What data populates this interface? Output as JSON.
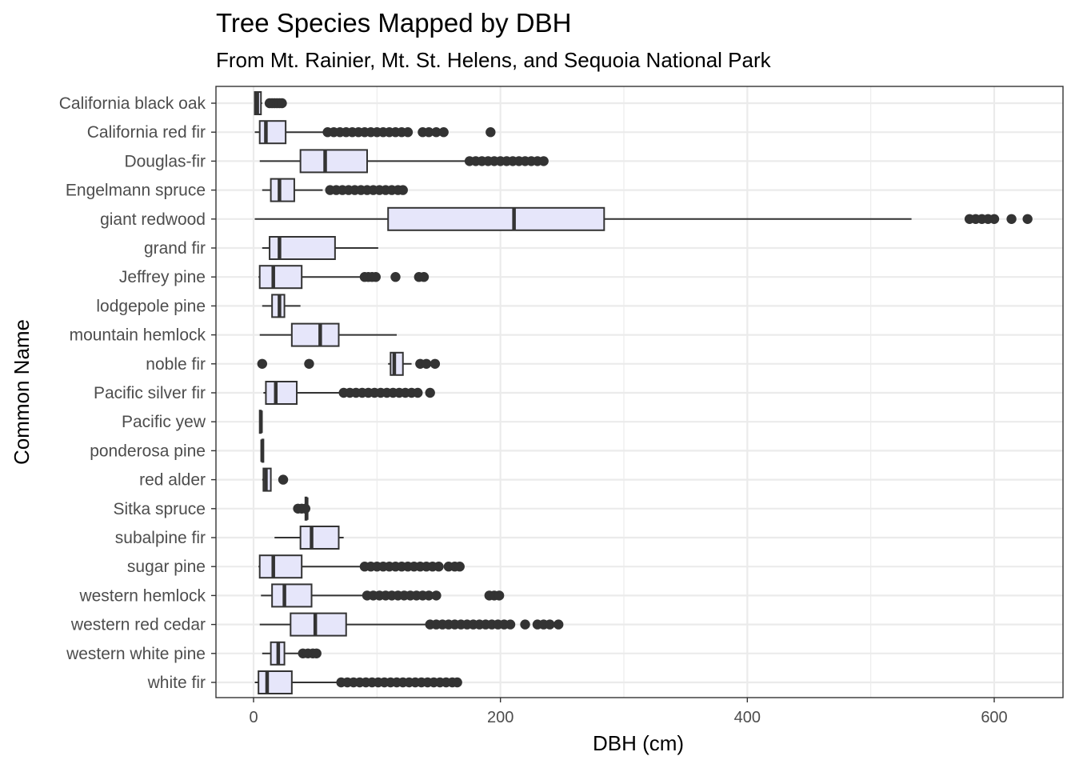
{
  "chart_data": {
    "type": "boxplot",
    "title": "Tree Species Mapped by DBH",
    "subtitle": "From Mt. Rainier, Mt. St. Helens, and Sequoia National Park",
    "xlabel": "DBH (cm)",
    "ylabel": "Common Name",
    "xlim": [
      -30,
      655
    ],
    "xticks": [
      0,
      200,
      400,
      600
    ],
    "orientation": "horizontal",
    "grid": true,
    "colors": {
      "box_fill": "#e6e6fa",
      "box_stroke": "#333333",
      "outlier": "#333333",
      "grid": "#ebebeb",
      "panel_border": "#333333"
    },
    "categories": [
      "California black oak",
      "California red fir",
      "Douglas-fir",
      "Engelmann spruce",
      "giant redwood",
      "grand fir",
      "Jeffrey pine",
      "lodgepole pine",
      "mountain hemlock",
      "noble fir",
      "Pacific silver fir",
      "Pacific yew",
      "ponderosa pine",
      "red alder",
      "Sitka spruce",
      "subalpine fir",
      "sugar pine",
      "western hemlock",
      "western red cedar",
      "western white pine",
      "white fir"
    ],
    "boxes": [
      {
        "name": "California black oak",
        "whisker_low": 1,
        "q1": 1,
        "median": 3,
        "q3": 6,
        "whisker_high": 7,
        "outliers": [
          13,
          15,
          17,
          19,
          21,
          23
        ]
      },
      {
        "name": "California red fir",
        "whisker_low": 1,
        "q1": 5,
        "median": 10,
        "q3": 26,
        "whisker_high": 57,
        "outliers": [
          60,
          65,
          70,
          75,
          80,
          85,
          90,
          95,
          100,
          105,
          110,
          115,
          120,
          125,
          137,
          142,
          148,
          154,
          192
        ]
      },
      {
        "name": "Douglas-fir",
        "whisker_low": 5,
        "q1": 38,
        "median": 58,
        "q3": 92,
        "whisker_high": 172,
        "outliers": [
          175,
          180,
          185,
          190,
          195,
          200,
          205,
          210,
          215,
          220,
          225,
          230,
          235
        ]
      },
      {
        "name": "Engelmann spruce",
        "whisker_low": 7,
        "q1": 14,
        "median": 21,
        "q3": 33,
        "whisker_high": 56,
        "outliers": [
          62,
          67,
          72,
          77,
          82,
          87,
          92,
          97,
          102,
          107,
          112,
          117,
          121
        ]
      },
      {
        "name": "giant redwood",
        "whisker_low": 1,
        "q1": 109,
        "median": 211,
        "q3": 284,
        "whisker_high": 533,
        "outliers": [
          580,
          585,
          590,
          595,
          600,
          614,
          627
        ]
      },
      {
        "name": "grand fir",
        "whisker_low": 7,
        "q1": 13,
        "median": 21,
        "q3": 66,
        "whisker_high": 101,
        "outliers": []
      },
      {
        "name": "Jeffrey pine",
        "whisker_low": 4,
        "q1": 5,
        "median": 16,
        "q3": 39,
        "whisker_high": 88,
        "outliers": [
          90,
          93,
          96,
          99,
          115,
          134,
          138
        ]
      },
      {
        "name": "lodgepole pine",
        "whisker_low": 7,
        "q1": 15,
        "median": 21,
        "q3": 25,
        "whisker_high": 38,
        "outliers": []
      },
      {
        "name": "mountain hemlock",
        "whisker_low": 5,
        "q1": 31,
        "median": 54,
        "q3": 69,
        "whisker_high": 116,
        "outliers": []
      },
      {
        "name": "noble fir",
        "whisker_low": 109,
        "q1": 111,
        "median": 114,
        "q3": 121,
        "whisker_high": 128,
        "outliers": [
          7,
          45,
          135,
          140,
          147
        ]
      },
      {
        "name": "Pacific silver fir",
        "whisker_low": 8,
        "q1": 10,
        "median": 18,
        "q3": 35,
        "whisker_high": 70,
        "outliers": [
          73,
          78,
          83,
          88,
          93,
          98,
          103,
          108,
          113,
          118,
          123,
          128,
          133,
          143
        ]
      },
      {
        "name": "Pacific yew",
        "whisker_low": 5,
        "q1": 5,
        "median": 6,
        "q3": 6,
        "whisker_high": 6,
        "outliers": []
      },
      {
        "name": "ponderosa pine",
        "whisker_low": 7,
        "q1": 7,
        "median": 7,
        "q3": 8,
        "whisker_high": 8,
        "outliers": []
      },
      {
        "name": "red alder",
        "whisker_low": 7,
        "q1": 8,
        "median": 10,
        "q3": 14,
        "whisker_high": 14,
        "outliers": [
          24
        ]
      },
      {
        "name": "Sitka spruce",
        "whisker_low": 38,
        "q1": 42,
        "median": 43,
        "q3": 43,
        "whisker_high": 43,
        "outliers": [
          36,
          39,
          42
        ]
      },
      {
        "name": "subalpine fir",
        "whisker_low": 17,
        "q1": 38,
        "median": 47,
        "q3": 69,
        "whisker_high": 73,
        "outliers": []
      },
      {
        "name": "sugar pine",
        "whisker_low": 4,
        "q1": 5,
        "median": 16,
        "q3": 39,
        "whisker_high": 87,
        "outliers": [
          90,
          95,
          100,
          105,
          110,
          115,
          120,
          125,
          130,
          135,
          140,
          145,
          150,
          158,
          163,
          167
        ]
      },
      {
        "name": "western hemlock",
        "whisker_low": 6,
        "q1": 15,
        "median": 25,
        "q3": 47,
        "whisker_high": 89,
        "outliers": [
          92,
          97,
          102,
          107,
          112,
          117,
          122,
          127,
          132,
          137,
          142,
          148,
          191,
          195,
          199
        ]
      },
      {
        "name": "western red cedar",
        "whisker_low": 5,
        "q1": 30,
        "median": 50,
        "q3": 75,
        "whisker_high": 140,
        "outliers": [
          143,
          148,
          153,
          158,
          163,
          168,
          173,
          178,
          183,
          188,
          193,
          198,
          203,
          208,
          220,
          230,
          235,
          240,
          247
        ]
      },
      {
        "name": "western white pine",
        "whisker_low": 7,
        "q1": 14,
        "median": 20,
        "q3": 25,
        "whisker_high": 38,
        "outliers": [
          40,
          44,
          48,
          51
        ]
      },
      {
        "name": "white fir",
        "whisker_low": 1,
        "q1": 4,
        "median": 11,
        "q3": 31,
        "whisker_high": 68,
        "outliers": [
          71,
          76,
          81,
          86,
          91,
          96,
          101,
          106,
          111,
          116,
          121,
          126,
          131,
          136,
          141,
          146,
          151,
          156,
          161,
          165
        ]
      }
    ]
  }
}
